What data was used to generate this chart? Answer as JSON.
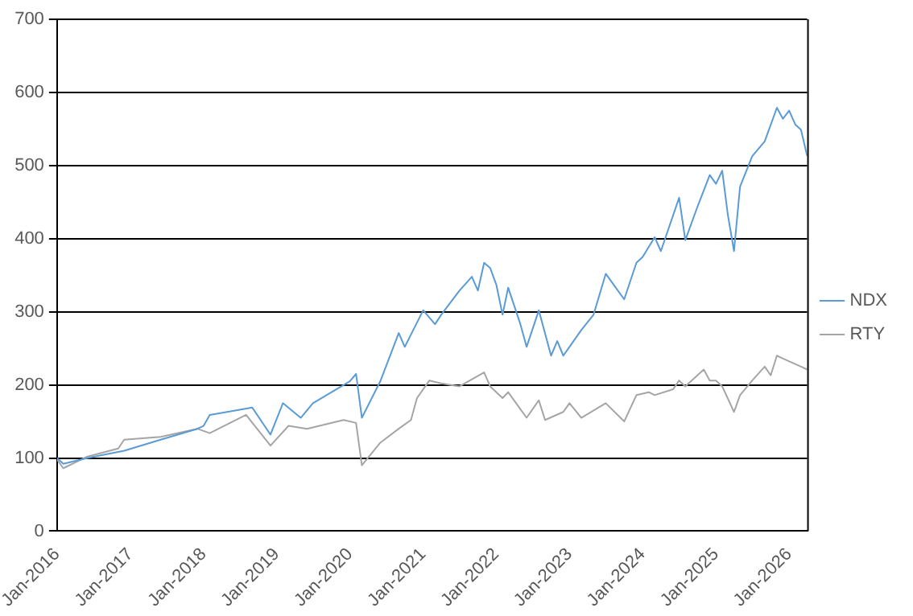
{
  "chart_data": {
    "type": "line",
    "xlim": [
      "2016-01",
      "2026-04"
    ],
    "xticks": [
      {
        "value": "2016-01",
        "label": "Jan-2016"
      },
      {
        "value": "2017-01",
        "label": "Jan-2017"
      },
      {
        "value": "2018-01",
        "label": "Jan-2018"
      },
      {
        "value": "2019-01",
        "label": "Jan-2019"
      },
      {
        "value": "2020-01",
        "label": "Jan-2020"
      },
      {
        "value": "2021-01",
        "label": "Jan-2021"
      },
      {
        "value": "2022-01",
        "label": "Jan-2022"
      },
      {
        "value": "2023-01",
        "label": "Jan-2023"
      },
      {
        "value": "2024-01",
        "label": "Jan-2024"
      },
      {
        "value": "2025-01",
        "label": "Jan-2025"
      },
      {
        "value": "2026-01",
        "label": "Jan-2026"
      }
    ],
    "ylim": [
      0,
      700
    ],
    "yticks": [
      0,
      100,
      200,
      300,
      400,
      500,
      600,
      700
    ],
    "grid": "y",
    "legend": "right",
    "marker": "none",
    "line_style": "solid",
    "series": [
      {
        "name": "NDX",
        "color": "#5b9bd5",
        "x": [
          "2016-01",
          "2016-02",
          "2016-06",
          "2016-12",
          "2017-06",
          "2017-12",
          "2018-01",
          "2018-02",
          "2018-09",
          "2018-12",
          "2019-02",
          "2019-05",
          "2019-07",
          "2020-01",
          "2020-02",
          "2020-03",
          "2020-06",
          "2020-09",
          "2020-10",
          "2021-01",
          "2021-03",
          "2021-04",
          "2021-07",
          "2021-09",
          "2021-10",
          "2021-11",
          "2021-12",
          "2022-01",
          "2022-02",
          "2022-03",
          "2022-05",
          "2022-06",
          "2022-08",
          "2022-10",
          "2022-11",
          "2022-12",
          "2023-01",
          "2023-03",
          "2023-05",
          "2023-07",
          "2023-10",
          "2023-12",
          "2024-01",
          "2024-03",
          "2024-04",
          "2024-07",
          "2024-08",
          "2024-10",
          "2024-12",
          "2025-01",
          "2025-02",
          "2025-03",
          "2025-04",
          "2025-05",
          "2025-07",
          "2025-09",
          "2025-11",
          "2025-12",
          "2026-01",
          "2026-02",
          "2026-03",
          "2026-04"
        ],
        "values": [
          100,
          92,
          100,
          110,
          125,
          140,
          144,
          159,
          169,
          132,
          175,
          155,
          175,
          205,
          215,
          155,
          205,
          271,
          252,
          302,
          283,
          296,
          329,
          348,
          329,
          367,
          360,
          337,
          296,
          333,
          283,
          252,
          302,
          240,
          260,
          240,
          252,
          275,
          296,
          352,
          317,
          367,
          375,
          402,
          383,
          456,
          398,
          444,
          487,
          475,
          493,
          433,
          383,
          471,
          513,
          533,
          579,
          564,
          575,
          556,
          549,
          513
        ]
      },
      {
        "name": "RTY",
        "color": "#a5a5a5",
        "x": [
          "2016-01",
          "2016-02",
          "2016-06",
          "2016-11",
          "2016-12",
          "2017-06",
          "2017-12",
          "2018-02",
          "2018-08",
          "2018-12",
          "2019-03",
          "2019-06",
          "2019-12",
          "2020-02",
          "2020-03",
          "2020-06",
          "2020-09",
          "2020-11",
          "2020-12",
          "2021-02",
          "2021-04",
          "2021-07",
          "2021-11",
          "2021-12",
          "2022-02",
          "2022-03",
          "2022-06",
          "2022-08",
          "2022-09",
          "2022-12",
          "2023-01",
          "2023-03",
          "2023-07",
          "2023-10",
          "2023-12",
          "2024-02",
          "2024-03",
          "2024-06",
          "2024-07",
          "2024-08",
          "2024-11",
          "2024-12",
          "2025-01",
          "2025-02",
          "2025-04",
          "2025-05",
          "2025-07",
          "2025-09",
          "2025-10",
          "2025-11",
          "2025-12",
          "2026-03",
          "2026-04"
        ],
        "values": [
          98,
          86,
          102,
          113,
          125,
          129,
          140,
          134,
          159,
          117,
          144,
          140,
          152,
          148,
          90,
          121,
          140,
          152,
          182,
          206,
          202,
          198,
          217,
          198,
          182,
          190,
          155,
          179,
          152,
          163,
          175,
          155,
          175,
          150,
          186,
          190,
          186,
          194,
          206,
          198,
          221,
          206,
          206,
          198,
          163,
          186,
          206,
          225,
          213,
          240,
          236,
          225,
          221
        ]
      }
    ]
  }
}
